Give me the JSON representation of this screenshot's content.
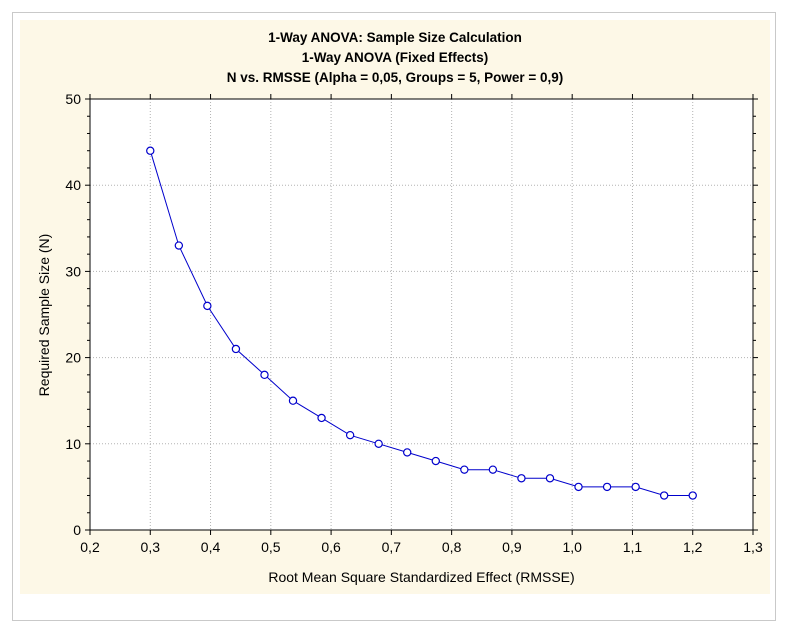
{
  "chart_data": {
    "type": "line",
    "title_lines": [
      "1-Way ANOVA: Sample Size Calculation",
      "1-Way ANOVA (Fixed Effects)",
      "N vs. RMSSE (Alpha = 0,05, Groups = 5, Power = 0,9)"
    ],
    "xlabel": "Root Mean Square Standardized Effect (RMSSE)",
    "ylabel": "Required Sample Size (N)",
    "xlim": [
      0.2,
      1.3
    ],
    "ylim": [
      0,
      50
    ],
    "xticks": [
      "0,2",
      "0,3",
      "0,4",
      "0,5",
      "0,6",
      "0,7",
      "0,8",
      "0,9",
      "1,0",
      "1,1",
      "1,2",
      "1,3"
    ],
    "yticks": [
      "0",
      "10",
      "20",
      "30",
      "40",
      "50"
    ],
    "grid": true,
    "series": [
      {
        "color": "#0000cc",
        "marker": "open-circle",
        "x": [
          0.3,
          0.3474,
          0.3947,
          0.4421,
          0.4895,
          0.5368,
          0.5842,
          0.6316,
          0.6789,
          0.7263,
          0.7737,
          0.8211,
          0.8684,
          0.9158,
          0.9632,
          1.0105,
          1.0579,
          1.1053,
          1.1526,
          1.2
        ],
        "y": [
          44,
          33,
          26,
          21,
          18,
          15,
          13,
          11,
          10,
          9,
          8,
          7,
          7,
          6,
          6,
          5,
          5,
          5,
          4,
          4
        ]
      }
    ]
  }
}
